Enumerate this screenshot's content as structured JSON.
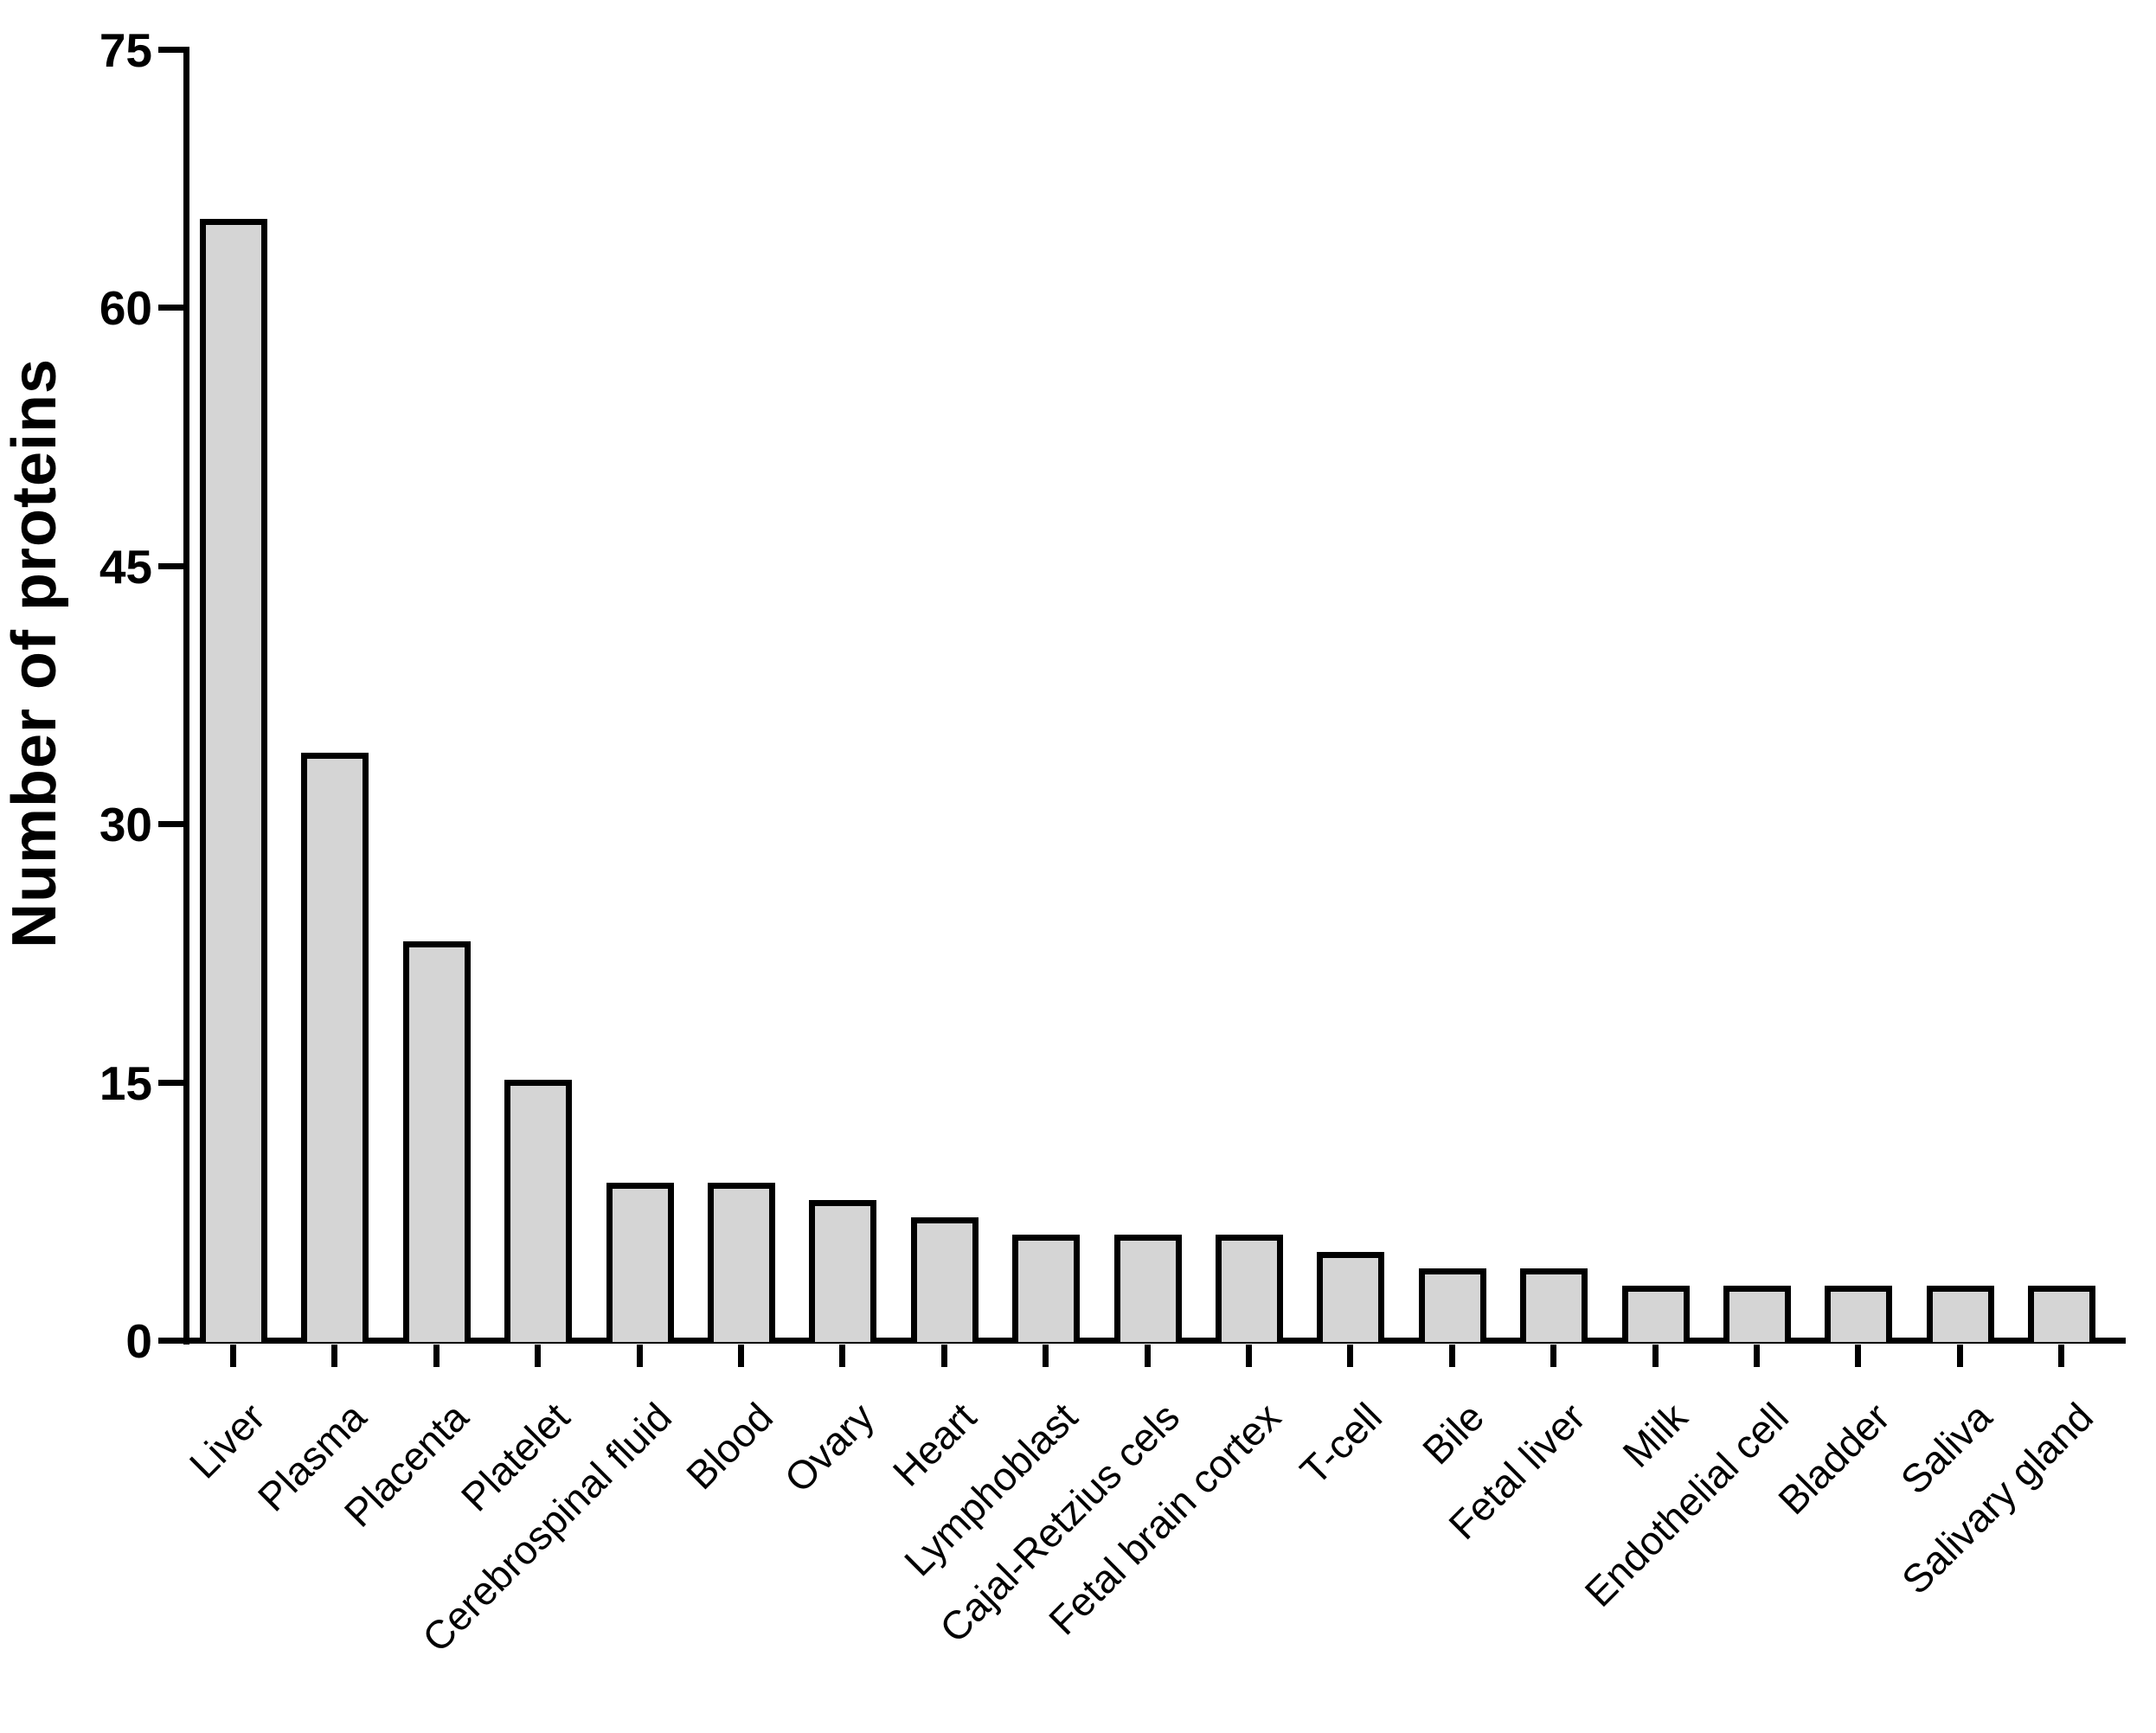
{
  "chart_data": {
    "type": "bar",
    "title": "",
    "ylabel": "Number of proteins",
    "xlabel": "",
    "categories": [
      "Liver",
      "Plasma",
      "Placenta",
      "Platelet",
      "Cerebrospinal fluid",
      "Blood",
      "Ovary",
      "Heart",
      "Lymphoblast",
      "Cajal-Retzius cels",
      "Fetal brain cortex",
      "T-cell",
      "Bile",
      "Fetal liver",
      "Milk",
      "Endothelial cell",
      "Bladder",
      "Saliva",
      "Salivary gland"
    ],
    "values": [
      65,
      34,
      23,
      15,
      9,
      9,
      8,
      7,
      6,
      6,
      6,
      5,
      4,
      4,
      3,
      3,
      3,
      3,
      3
    ],
    "ylim": [
      0,
      75
    ],
    "yticks": [
      0,
      15,
      30,
      45,
      60,
      75
    ],
    "grid": false,
    "legend_position": "none",
    "bar_fill": "#d5d5d5",
    "bar_stroke": "#000000",
    "axis_color": "#000000",
    "background": "#ffffff"
  }
}
